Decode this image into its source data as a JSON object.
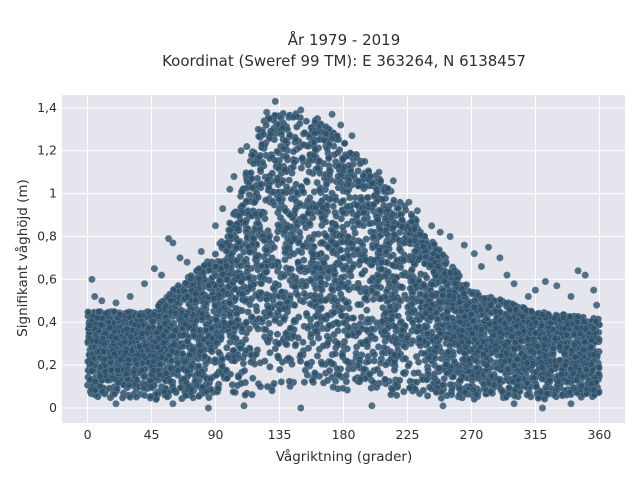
{
  "chart_data": {
    "type": "scatter",
    "title": [
      "År 1979 - 2019",
      "Koordinat (Sweref 99 TM): E 363264, N 6138457"
    ],
    "xlabel": "Vågriktning (grader)",
    "ylabel": "Signifikant våghöjd (m)",
    "xlim": [
      -18,
      378
    ],
    "ylim": [
      -0.07,
      1.46
    ],
    "x_ticks": [
      0,
      45,
      90,
      135,
      180,
      225,
      270,
      315,
      360
    ],
    "x_tick_labels": [
      "0",
      "45",
      "90",
      "135",
      "180",
      "225",
      "270",
      "315",
      "360"
    ],
    "y_ticks": [
      0,
      0.2,
      0.4,
      0.6,
      0.8,
      1.0,
      1.2,
      1.4
    ],
    "y_tick_labels": [
      "0",
      "0,2",
      "0,4",
      "0,6",
      "0,8",
      "1",
      "1,2",
      "1,4"
    ],
    "grid": true,
    "legend": "none",
    "colors": {
      "marker": "#2e5068",
      "marker_edge": "#5b7a90",
      "plot_bg": "#e5e5ee",
      "grid": "#ffffff"
    },
    "series": [
      {
        "envelope_x": [
          0,
          45,
          60,
          90,
          105,
          118,
          125,
          135,
          160,
          180,
          225,
          270,
          315,
          360
        ],
        "envelope_y_max": [
          0.45,
          0.45,
          0.55,
          0.72,
          0.95,
          1.25,
          1.36,
          1.38,
          1.37,
          1.25,
          0.93,
          0.55,
          0.45,
          0.42
        ],
        "envelope_y_min": [
          0.05,
          0.04,
          0.04,
          0.04,
          0.05,
          0.06,
          0.07,
          0.08,
          0.08,
          0.07,
          0.05,
          0.04,
          0.04,
          0.05
        ],
        "outliers": [
          [
            3,
            0.6
          ],
          [
            5,
            0.52
          ],
          [
            10,
            0.5
          ],
          [
            20,
            0.49
          ],
          [
            30,
            0.52
          ],
          [
            40,
            0.58
          ],
          [
            47,
            0.65
          ],
          [
            52,
            0.62
          ],
          [
            57,
            0.79
          ],
          [
            60,
            0.77
          ],
          [
            65,
            0.7
          ],
          [
            70,
            0.68
          ],
          [
            80,
            0.73
          ],
          [
            90,
            0.85
          ],
          [
            95,
            0.93
          ],
          [
            100,
            1.02
          ],
          [
            103,
            1.08
          ],
          [
            108,
            1.2
          ],
          [
            112,
            1.22
          ],
          [
            120,
            1.3
          ],
          [
            126,
            1.38
          ],
          [
            132,
            1.43
          ],
          [
            150,
            1.39
          ],
          [
            172,
            1.37
          ],
          [
            178,
            1.32
          ],
          [
            186,
            1.27
          ],
          [
            195,
            1.15
          ],
          [
            205,
            1.1
          ],
          [
            215,
            1.06
          ],
          [
            226,
            0.96
          ],
          [
            232,
            0.92
          ],
          [
            242,
            0.85
          ],
          [
            248,
            0.82
          ],
          [
            255,
            0.8
          ],
          [
            265,
            0.76
          ],
          [
            272,
            0.72
          ],
          [
            277,
            0.66
          ],
          [
            282,
            0.75
          ],
          [
            290,
            0.7
          ],
          [
            295,
            0.62
          ],
          [
            300,
            0.58
          ],
          [
            310,
            0.52
          ],
          [
            315,
            0.55
          ],
          [
            322,
            0.59
          ],
          [
            330,
            0.57
          ],
          [
            340,
            0.52
          ],
          [
            345,
            0.64
          ],
          [
            350,
            0.62
          ],
          [
            356,
            0.55
          ],
          [
            358,
            0.48
          ],
          [
            20,
            0.02
          ],
          [
            60,
            0.02
          ],
          [
            110,
            0.01
          ],
          [
            150,
            0.0
          ],
          [
            200,
            0.01
          ],
          [
            250,
            0.01
          ],
          [
            300,
            0.02
          ],
          [
            340,
            0.02
          ],
          [
            320,
            0.0
          ],
          [
            85,
            0.0
          ]
        ]
      }
    ]
  }
}
